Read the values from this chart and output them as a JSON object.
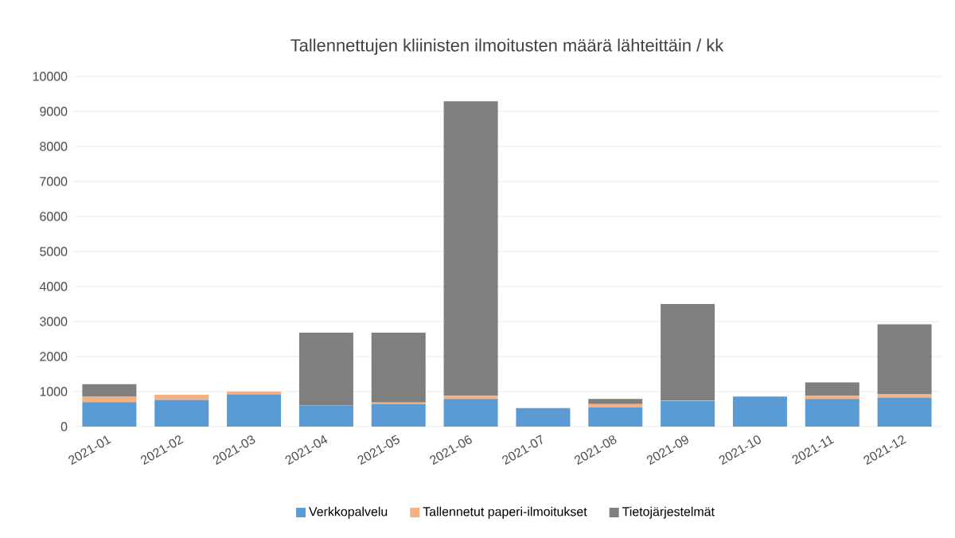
{
  "chart_data": {
    "type": "bar",
    "stacked": true,
    "title": "Tallennettujen kliinisten ilmoitusten määrä lähteittäin / kk",
    "categories": [
      "2021-01",
      "2021-02",
      "2021-03",
      "2021-04",
      "2021-05",
      "2021-06",
      "2021-07",
      "2021-08",
      "2021-09",
      "2021-10",
      "2021-11",
      "2021-12"
    ],
    "series": [
      {
        "name": "Verkkopalvelu",
        "color": "#5b9bd5",
        "values": [
          700,
          760,
          920,
          600,
          650,
          790,
          530,
          550,
          730,
          860,
          790,
          830
        ]
      },
      {
        "name": "Tallennetut paperi-ilmoitukset",
        "color": "#f4b183",
        "values": [
          150,
          150,
          80,
          null,
          40,
          90,
          0,
          90,
          10,
          0,
          90,
          90
        ]
      },
      {
        "name": "Tietojärjestelmät",
        "color": "#7f7f7f",
        "values": [
          360,
          0,
          0,
          2080,
          1990,
          8410,
          0,
          150,
          2760,
          0,
          380,
          2000
        ]
      }
    ],
    "ylim": [
      0,
      10000
    ],
    "yticks": [
      0,
      1000,
      2000,
      3000,
      4000,
      5000,
      6000,
      7000,
      8000,
      9000,
      10000
    ],
    "grid": "y",
    "legend": "bottom"
  }
}
